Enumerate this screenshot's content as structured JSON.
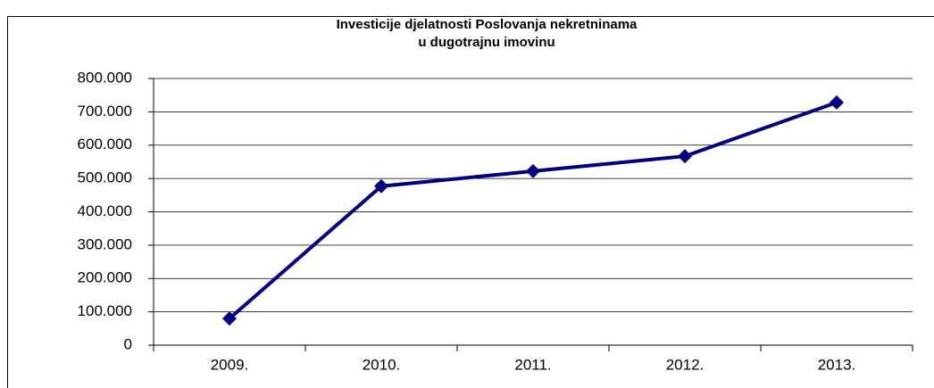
{
  "chart_data": {
    "type": "line",
    "title": [
      "Investicije djelatnosti Poslovanja nekretninama",
      "u dugotrajnu imovinu"
    ],
    "categories": [
      "2009.",
      "2010.",
      "2011.",
      "2012.",
      "2013."
    ],
    "series": [
      {
        "color": "#000080",
        "values": [
          80000,
          477000,
          522000,
          567000,
          728000
        ]
      }
    ],
    "ylim": [
      0,
      800000
    ],
    "yticks": [
      {
        "value": 0,
        "label": "0"
      },
      {
        "value": 100000,
        "label": "100.000"
      },
      {
        "value": 200000,
        "label": "200.000"
      },
      {
        "value": 300000,
        "label": "300.000"
      },
      {
        "value": 400000,
        "label": "400.000"
      },
      {
        "value": 500000,
        "label": "500.000"
      },
      {
        "value": 600000,
        "label": "600.000"
      },
      {
        "value": 700000,
        "label": "700.000"
      },
      {
        "value": 800000,
        "label": "800.000"
      }
    ],
    "grid": true
  }
}
